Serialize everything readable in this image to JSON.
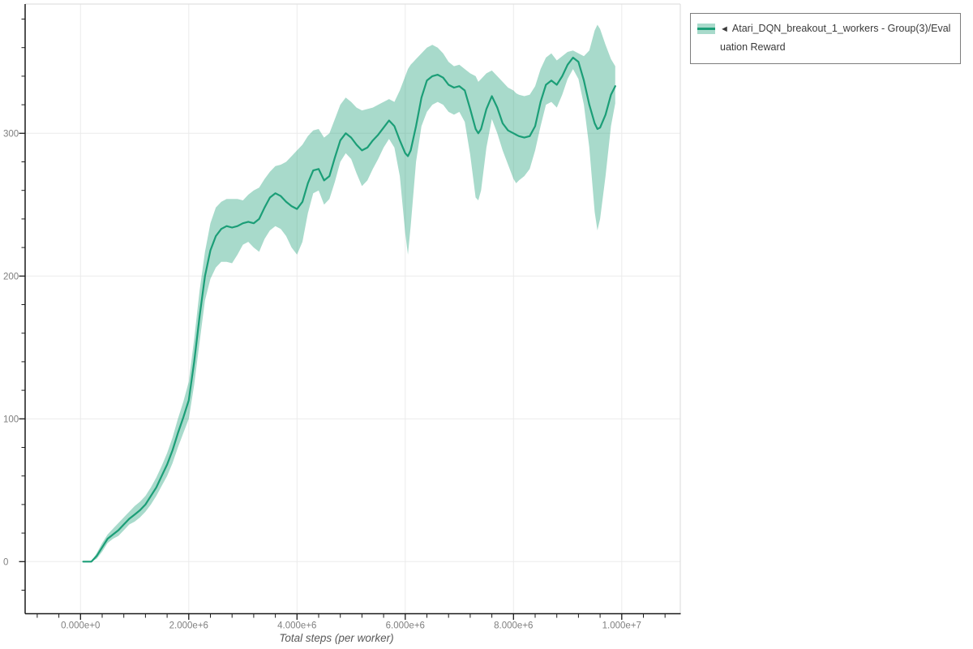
{
  "legend": {
    "marker": "◄",
    "label": "Atari_DQN_breakout_1_workers - Group(3)/Evaluation Reward"
  },
  "axes": {
    "x": {
      "title": "Total steps (per worker)",
      "tick_labels": [
        "0.000e+0",
        "2.000e+6",
        "4.000e+6",
        "6.000e+6",
        "8.000e+6",
        "1.000e+7"
      ],
      "tick_values": [
        0,
        2000000,
        4000000,
        6000000,
        8000000,
        10000000
      ],
      "minor_tick_step": 400000
    },
    "y": {
      "tick_labels": [
        "0",
        "100",
        "200",
        "300"
      ],
      "tick_values": [
        0,
        100,
        200,
        300
      ],
      "minor_tick_step": 20
    }
  },
  "colors": {
    "line": "#1b9e77",
    "band": "rgba(27,158,119,0.38)",
    "gridline": "#ebebeb",
    "panel_border": "#e0e0e0",
    "spine": "#1a1a1a",
    "tick_label": "#7f7f7f"
  },
  "chart_data": {
    "type": "line",
    "title": "",
    "xlabel": "Total steps (per worker)",
    "ylabel": "",
    "xlim": [
      -1020000,
      11080000
    ],
    "ylim": [
      -36,
      390
    ],
    "grid": true,
    "legend_position": "outside-top-right",
    "series": [
      {
        "name": "Atari_DQN_breakout_1_workers - Group(3)/Evaluation Reward",
        "color": "#1b9e77",
        "x": [
          50000,
          200000,
          300000,
          400000,
          500000,
          600000,
          700000,
          800000,
          900000,
          1000000,
          1100000,
          1200000,
          1300000,
          1400000,
          1500000,
          1600000,
          1700000,
          1800000,
          1900000,
          2000000,
          2100000,
          2200000,
          2300000,
          2400000,
          2500000,
          2600000,
          2700000,
          2800000,
          2900000,
          3000000,
          3100000,
          3200000,
          3300000,
          3400000,
          3500000,
          3600000,
          3700000,
          3800000,
          3900000,
          4000000,
          4100000,
          4200000,
          4300000,
          4400000,
          4500000,
          4600000,
          4700000,
          4800000,
          4900000,
          5000000,
          5100000,
          5200000,
          5300000,
          5400000,
          5500000,
          5600000,
          5700000,
          5800000,
          5900000,
          6000000,
          6050000,
          6100000,
          6200000,
          6300000,
          6400000,
          6500000,
          6600000,
          6700000,
          6800000,
          6900000,
          7000000,
          7100000,
          7200000,
          7300000,
          7350000,
          7400000,
          7500000,
          7600000,
          7700000,
          7800000,
          7900000,
          8000000,
          8050000,
          8100000,
          8200000,
          8300000,
          8400000,
          8500000,
          8600000,
          8700000,
          8800000,
          8900000,
          9000000,
          9100000,
          9200000,
          9300000,
          9400000,
          9500000,
          9550000,
          9600000,
          9700000,
          9800000,
          9880000
        ],
        "mean": [
          0,
          0,
          4,
          10,
          16,
          19,
          22,
          26,
          30,
          33,
          36,
          40,
          46,
          52,
          60,
          68,
          78,
          90,
          101,
          113,
          140,
          172,
          200,
          218,
          228,
          233,
          235,
          234,
          235,
          237,
          238,
          237,
          240,
          248,
          255,
          258,
          256,
          252,
          249,
          247,
          252,
          265,
          274,
          275,
          267,
          270,
          283,
          295,
          300,
          297,
          292,
          288,
          290,
          295,
          299,
          304,
          309,
          305,
          295,
          286,
          284,
          288,
          305,
          325,
          337,
          340,
          341,
          339,
          334,
          332,
          333,
          330,
          317,
          303,
          300,
          303,
          317,
          326,
          318,
          307,
          302,
          300,
          299,
          298,
          297,
          298,
          305,
          322,
          334,
          337,
          334,
          340,
          348,
          353,
          350,
          337,
          320,
          307,
          303,
          304,
          313,
          327,
          333
        ],
        "band_low": [
          0,
          0,
          2,
          7,
          13,
          16,
          18,
          22,
          26,
          28,
          31,
          35,
          40,
          46,
          53,
          60,
          69,
          80,
          90,
          100,
          124,
          154,
          183,
          198,
          206,
          210,
          210,
          209,
          215,
          222,
          224,
          220,
          217,
          226,
          232,
          235,
          233,
          228,
          220,
          215,
          224,
          244,
          258,
          260,
          250,
          254,
          266,
          280,
          286,
          282,
          272,
          263,
          267,
          275,
          282,
          290,
          296,
          290,
          270,
          230,
          215,
          235,
          280,
          305,
          315,
          320,
          322,
          320,
          315,
          313,
          315,
          308,
          285,
          255,
          253,
          260,
          290,
          310,
          300,
          288,
          278,
          268,
          265,
          267,
          270,
          275,
          288,
          305,
          320,
          322,
          318,
          327,
          338,
          345,
          338,
          320,
          290,
          245,
          232,
          240,
          270,
          305,
          321
        ],
        "band_high": [
          0,
          0,
          6,
          13,
          19,
          23,
          27,
          31,
          35,
          39,
          42,
          46,
          52,
          59,
          67,
          76,
          87,
          100,
          112,
          126,
          156,
          190,
          217,
          237,
          248,
          252,
          254,
          254,
          254,
          253,
          257,
          260,
          262,
          268,
          273,
          277,
          278,
          280,
          284,
          288,
          292,
          298,
          302,
          303,
          297,
          300,
          310,
          320,
          325,
          322,
          318,
          316,
          317,
          318,
          320,
          322,
          324,
          322,
          330,
          340,
          345,
          348,
          352,
          356,
          360,
          362,
          360,
          356,
          350,
          347,
          348,
          345,
          342,
          340,
          336,
          338,
          342,
          344,
          340,
          336,
          332,
          330,
          328,
          327,
          326,
          327,
          333,
          345,
          353,
          356,
          351,
          354,
          357,
          358,
          356,
          354,
          358,
          372,
          376,
          373,
          362,
          352,
          347
        ]
      }
    ]
  }
}
